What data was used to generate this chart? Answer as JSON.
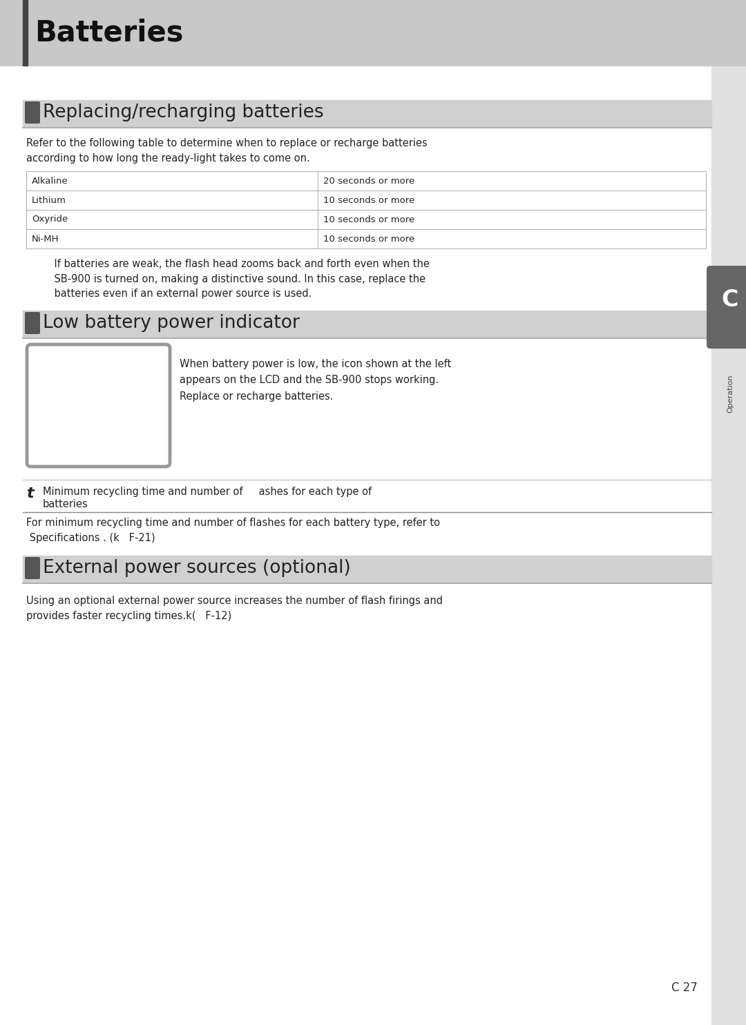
{
  "page_title": "Batteries",
  "page_bg": "#ffffff",
  "header_bg": "#c8c8c8",
  "header_text_color": "#111111",
  "header_left_bar_color": "#444444",
  "right_margin_bg": "#e0e0e0",
  "right_tab_bg": "#666666",
  "right_tab_text": "C",
  "right_tab_label": "Operation",
  "page_num": "C 27",
  "section1_icon_color": "#555555",
  "section1_title": "Replacing/recharging batteries",
  "section1_intro": "Refer to the following table to determine when to replace or recharge batteries\naccording to how long the ready-light takes to come on.",
  "table_rows": [
    [
      "Alkaline",
      "20 seconds or more"
    ],
    [
      "Lithium",
      "10 seconds or more"
    ],
    [
      "Oxyride",
      "10 seconds or more"
    ],
    [
      "Ni-MH",
      "10 seconds or more"
    ]
  ],
  "section1_note": "    If batteries are weak, the flash head zooms back and forth even when the\n    SB-900 is turned on, making a distinctive sound. In this case, replace the\n    batteries even if an external power source is used.",
  "section2_icon_color": "#555555",
  "section2_title": "Low battery power indicator",
  "section2_box_text": "When battery power is low, the icon shown at the left\nappears on the LCD and the SB-900 stops working.\nReplace or recharge batteries.",
  "tip_icon": "t",
  "tip_text_line1": "Minimum recycling time and number of     ashes for each type of",
  "tip_text_line2": "batteries",
  "tip_note": "For minimum recycling time and number of flashes for each battery type, refer to\n Specifications . (k   F-21)",
  "section3_icon_color": "#555555",
  "section3_title": "External power sources (optional)",
  "section3_text": "Using an optional external power source increases the number of flash firings and\nprovides faster recycling times.k(   F-12)"
}
